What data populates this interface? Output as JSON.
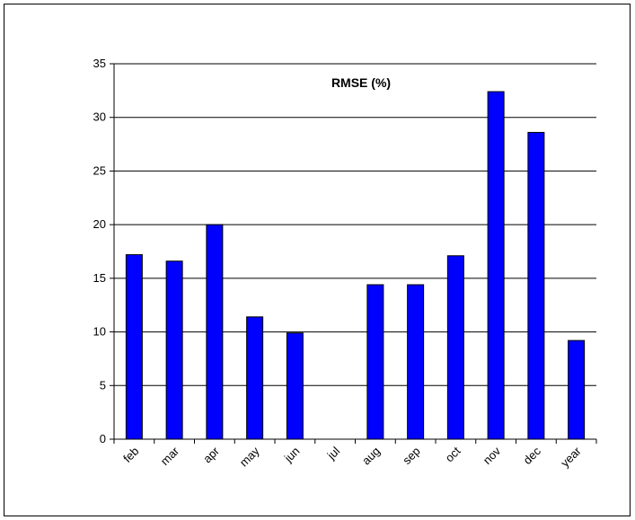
{
  "chart_data": {
    "type": "bar",
    "title": "RMSE (%)",
    "xlabel": "",
    "ylabel": "",
    "categories": [
      "feb",
      "mar",
      "apr",
      "may",
      "jun",
      "jul",
      "aug",
      "sep",
      "oct",
      "nov",
      "dec",
      "year"
    ],
    "values": [
      17.2,
      16.6,
      20.0,
      11.4,
      9.9,
      null,
      14.4,
      14.4,
      17.1,
      32.4,
      28.6,
      9.2
    ],
    "ylim": [
      0,
      35
    ],
    "yticks": [
      0,
      5,
      10,
      15,
      20,
      25,
      30,
      35
    ],
    "grid": true,
    "legend": "none",
    "bar_color": "#0000ff",
    "bar_edge_color": "#000000"
  }
}
